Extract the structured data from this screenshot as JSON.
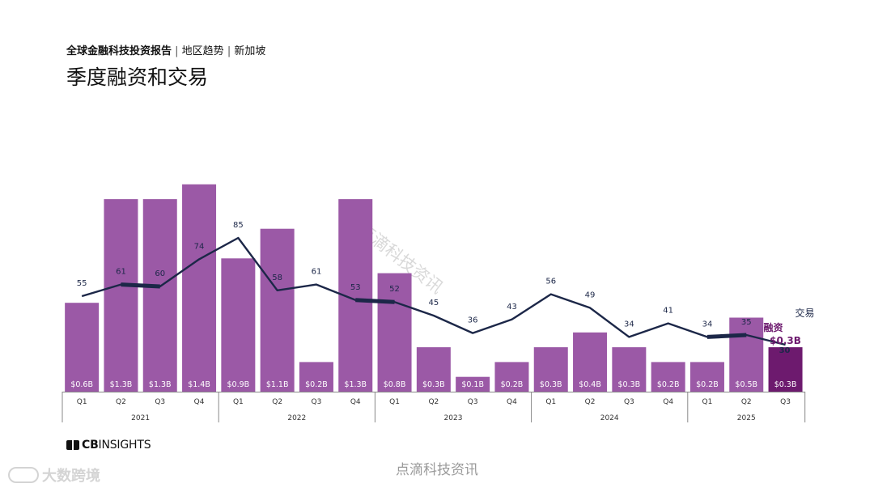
{
  "header": {
    "report": "全球金融科技投资报告",
    "region": "地区趋势",
    "country": "新加坡",
    "title": "季度融资和交易"
  },
  "chart_data": {
    "type": "bar",
    "title": "季度融资和交易",
    "quarters": [
      "Q1",
      "Q2",
      "Q3",
      "Q4",
      "Q1",
      "Q2",
      "Q3",
      "Q4",
      "Q1",
      "Q2",
      "Q3",
      "Q4",
      "Q1",
      "Q2",
      "Q3",
      "Q4",
      "Q1",
      "Q2",
      "Q3"
    ],
    "years": [
      {
        "label": "2021",
        "count": 4
      },
      {
        "label": "2022",
        "count": 4
      },
      {
        "label": "2023",
        "count": 4
      },
      {
        "label": "2024",
        "count": 4
      },
      {
        "label": "2025",
        "count": 3
      }
    ],
    "series": [
      {
        "name": "融资",
        "type": "bar",
        "unit": "$B",
        "values": [
          0.6,
          1.3,
          1.3,
          1.4,
          0.9,
          1.1,
          0.2,
          1.3,
          0.8,
          0.3,
          0.1,
          0.2,
          0.3,
          0.4,
          0.3,
          0.2,
          0.2,
          0.5,
          0.3
        ],
        "labels": [
          "$0.6B",
          "$1.3B",
          "$1.3B",
          "$1.4B",
          "$0.9B",
          "$1.1B",
          "$0.2B",
          "$1.3B",
          "$0.8B",
          "$0.3B",
          "$0.1B",
          "$0.2B",
          "$0.3B",
          "$0.4B",
          "$0.3B",
          "$0.2B",
          "$0.2B",
          "$0.5B",
          "$0.3B"
        ],
        "highlight_label": "$0.3B"
      },
      {
        "name": "交易",
        "type": "line",
        "values": [
          55,
          61,
          60,
          74,
          85,
          58,
          61,
          53,
          52,
          45,
          36,
          43,
          56,
          49,
          34,
          41,
          34,
          35,
          30
        ]
      }
    ],
    "colors": {
      "bar": "#9b59a6",
      "bar_last": "#6d1a6e",
      "line": "#1c2748",
      "axis": "#888888"
    }
  },
  "footer": {
    "logo_cb": "CB",
    "logo_rest": "INSIGHTS",
    "watermark_center": "点滴科技资讯",
    "watermark_left": "大数跨境",
    "watermark_diagonal": "点滴科技资讯"
  }
}
